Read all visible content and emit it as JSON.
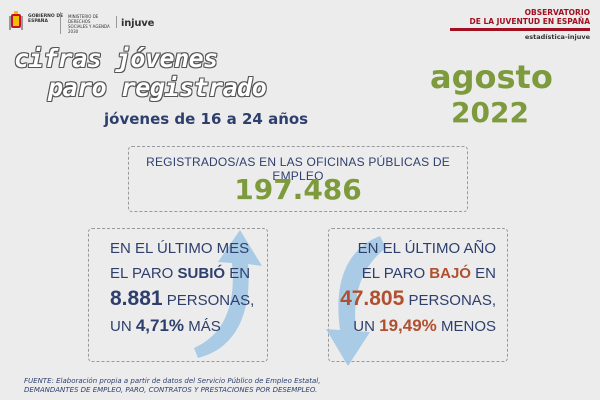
{
  "header": {
    "gobierno": "GOBIERNO DE ESPAÑA",
    "ministerio": "MINISTERIO DE DERECHOS SOCIALES Y AGENDA 2030",
    "injuve": "injuve",
    "observatorio_line1": "OBSERVATORIO",
    "observatorio_line2": "DE LA JUVENTUD EN ESPAÑA",
    "observatorio_sub": "estadística-injuve"
  },
  "title": {
    "line1": "cifras jóvenes",
    "line2": "paro registrado",
    "subtitle": "jóvenes de 16 a 24 años"
  },
  "period": {
    "month": "agosto",
    "year": "2022"
  },
  "registered": {
    "label": "REGISTRADOS/AS EN LAS OFICINAS PÚBLICAS DE EMPLEO",
    "value": "197.486"
  },
  "last_month": {
    "line1": "EN EL ÚLTIMO MES",
    "line2_prefix": "EL PARO ",
    "line2_verb": "SUBIÓ",
    "line2_suffix": " EN",
    "amount": "8.881",
    "amount_unit": " PERSONAS,",
    "pct_prefix": "UN ",
    "pct": "4,71%",
    "pct_suffix": " MÁS"
  },
  "last_year": {
    "line1": "EN EL ÚLTIMO AÑO",
    "line2_prefix": "EL PARO ",
    "line2_verb": "BAJÓ",
    "line2_suffix": " EN",
    "amount": "47.805",
    "amount_unit": " PERSONAS,",
    "pct_prefix": "UN ",
    "pct": "19,49%",
    "pct_suffix": " MENOS"
  },
  "source": {
    "line1": "FUENTE: Elaboración propia a partir de datos del Servicio Público de Empleo Estatal,",
    "line2": "DEMANDANTES DE EMPLEO, PARO, CONTRATOS Y PRESTACIONES POR DESEMPLEO."
  },
  "colors": {
    "navy": "#2e3f6e",
    "green": "#7d9a3c",
    "red": "#a01020",
    "arrow": "#9ec6e4"
  }
}
